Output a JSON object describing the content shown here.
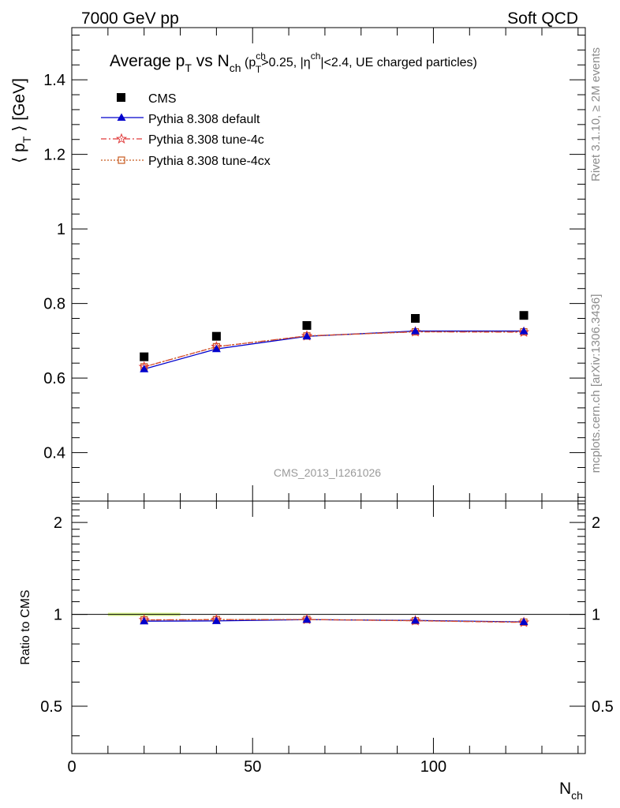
{
  "header": {
    "left": "7000 GeV pp",
    "right": "Soft QCD"
  },
  "side_labels": {
    "rivet": "Rivet 3.1.10, ≥ 2M events",
    "source": "mcplots.cern.ch [arXiv:1306.3436]"
  },
  "analysis_tag": "CMS_2013_I1261026",
  "colors": {
    "cms": "#000000",
    "default": "#0000cc",
    "tune4c": "#e03a3a",
    "tune4cx": "#c85a1e",
    "band": "#d7f28a"
  },
  "chart_data": [
    {
      "type": "scatter",
      "title": {
        "main": "Average p",
        "main_sub": "T",
        "vs": " vs N",
        "vs_sub": "ch",
        "cond_open": " (p",
        "cond_sup": "ch",
        "cond_sub": "T",
        "cond_mid": ">0.25, |η",
        "cond_sup2": "ch",
        "cond_end": "|<2.4, UE charged particles)"
      },
      "ylabel": {
        "pre": "⟨ p",
        "sub": "T",
        "post": " ⟩ [GeV]"
      },
      "ylim": [
        0.27,
        1.54
      ],
      "yticks": [
        0.4,
        0.6,
        0.8,
        1,
        1.2,
        1.4
      ],
      "ytick_labels": [
        "0.4",
        "0.6",
        "0.8",
        "1",
        "1.2",
        "1.4"
      ],
      "xlim": [
        0,
        142
      ],
      "legend_position": "top-left",
      "series": [
        {
          "name": "CMS",
          "x": [
            20,
            40,
            65,
            95,
            125
          ],
          "values": [
            0.657,
            0.712,
            0.741,
            0.76,
            0.768
          ]
        },
        {
          "name": "Pythia 8.308 default",
          "x": [
            20,
            40,
            65,
            95,
            125
          ],
          "values": [
            0.624,
            0.678,
            0.712,
            0.726,
            0.726
          ]
        },
        {
          "name": "Pythia 8.308 tune-4c",
          "x": [
            20,
            40,
            65,
            95,
            125
          ],
          "values": [
            0.63,
            0.684,
            0.713,
            0.724,
            0.723
          ]
        },
        {
          "name": "Pythia 8.308 tune-4cx",
          "x": [
            20,
            40,
            65,
            95,
            125
          ],
          "values": [
            0.63,
            0.684,
            0.713,
            0.724,
            0.724
          ]
        }
      ]
    },
    {
      "type": "line",
      "ylabel": "Ratio to CMS",
      "xlabel": {
        "main": "N",
        "sub": "ch"
      },
      "xlim": [
        0,
        142
      ],
      "xticks": [
        0,
        50,
        100
      ],
      "xtick_labels": [
        "0",
        "50",
        "100"
      ],
      "ylim": [
        0.35,
        2.35
      ],
      "yticks": [
        0.5,
        1,
        2
      ],
      "ytick_labels": [
        "0.5",
        "1",
        "2"
      ],
      "band_range": [
        10,
        30
      ],
      "series": [
        {
          "name": "Pythia 8.308 default",
          "x": [
            20,
            40,
            65,
            95,
            125
          ],
          "values": [
            0.95,
            0.952,
            0.961,
            0.955,
            0.945
          ]
        },
        {
          "name": "Pythia 8.308 tune-4c",
          "x": [
            20,
            40,
            65,
            95,
            125
          ],
          "values": [
            0.959,
            0.961,
            0.962,
            0.953,
            0.941
          ]
        },
        {
          "name": "Pythia 8.308 tune-4cx",
          "x": [
            20,
            40,
            65,
            95,
            125
          ],
          "values": [
            0.959,
            0.961,
            0.962,
            0.953,
            0.943
          ]
        }
      ]
    }
  ]
}
